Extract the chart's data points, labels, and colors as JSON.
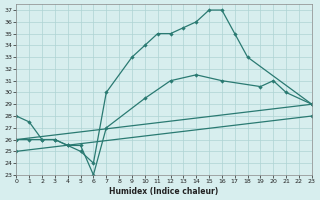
{
  "xlabel": "Humidex (Indice chaleur)",
  "bg_color": "#d7eeee",
  "grid_color": "#aed4d4",
  "line_color": "#2a7a72",
  "xlim": [
    0,
    23
  ],
  "ylim": [
    23,
    37.5
  ],
  "xticks": [
    0,
    1,
    2,
    3,
    4,
    5,
    6,
    7,
    8,
    9,
    10,
    11,
    12,
    13,
    14,
    15,
    16,
    17,
    18,
    19,
    20,
    21,
    22,
    23
  ],
  "yticks": [
    23,
    24,
    25,
    26,
    27,
    28,
    29,
    30,
    31,
    32,
    33,
    34,
    35,
    36,
    37
  ],
  "line1_x": [
    0,
    1,
    2,
    3,
    4,
    5,
    6,
    7,
    9,
    10,
    11,
    12,
    13,
    14,
    15,
    16,
    17,
    18,
    23
  ],
  "line1_y": [
    28.0,
    27.5,
    26.0,
    26.0,
    25.5,
    25.0,
    24.0,
    30.0,
    33.0,
    34.0,
    35.0,
    35.0,
    35.5,
    36.0,
    37.0,
    37.0,
    35.0,
    33.0,
    29.0
  ],
  "line2_x": [
    0,
    1,
    2,
    3,
    4,
    5,
    6,
    7,
    10,
    12,
    14,
    16,
    19,
    20,
    21,
    23
  ],
  "line2_y": [
    26.0,
    26.0,
    26.0,
    26.0,
    25.5,
    25.5,
    23.0,
    27.0,
    29.5,
    31.0,
    31.5,
    31.0,
    30.5,
    31.0,
    30.0,
    29.0
  ],
  "line3_x": [
    0,
    23
  ],
  "line3_y": [
    26.0,
    29.0
  ],
  "line4_x": [
    0,
    23
  ],
  "line4_y": [
    25.0,
    28.0
  ]
}
